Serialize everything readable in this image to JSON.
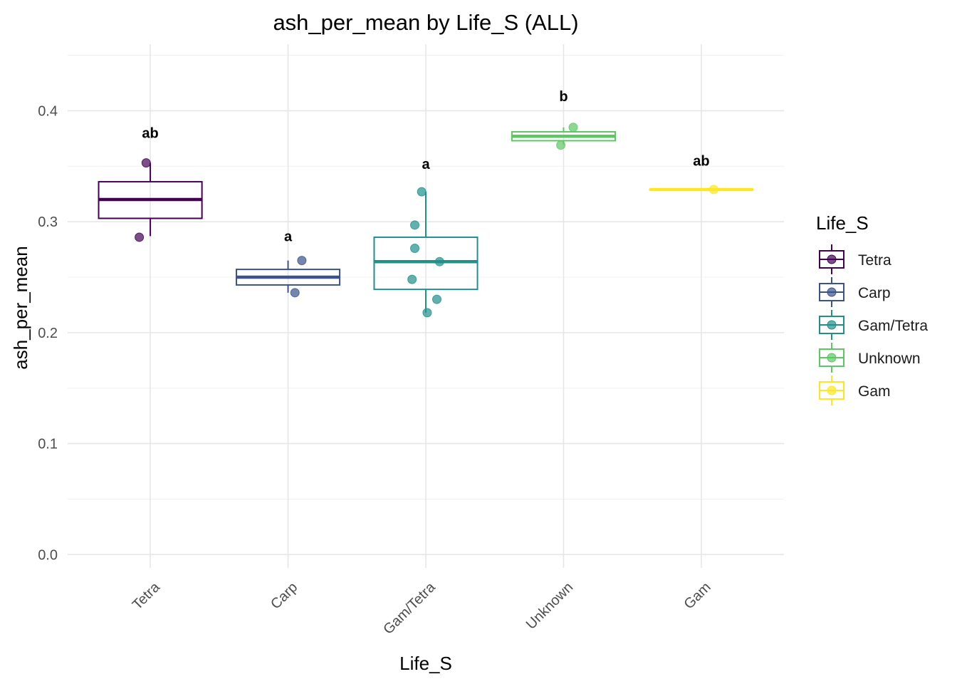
{
  "chart_data": {
    "type": "box",
    "title": "ash_per_mean by Life_S (ALL)",
    "xlabel": "Life_S",
    "ylabel": "ash_per_mean",
    "categories": [
      "Tetra",
      "Carp",
      "Gam/Tetra",
      "Unknown",
      "Gam"
    ],
    "ylim": [
      -0.012,
      0.46
    ],
    "yticks": [
      0.0,
      0.1,
      0.2,
      0.3,
      0.4
    ],
    "ytick_labels": [
      "0.0",
      "0.1",
      "0.2",
      "0.3",
      "0.4"
    ],
    "grid": true,
    "legend": {
      "title": "Life_S",
      "position": "right",
      "entries": [
        "Tetra",
        "Carp",
        "Gam/Tetra",
        "Unknown",
        "Gam"
      ]
    },
    "colors": {
      "Tetra": "#440154",
      "Carp": "#3b528b",
      "Gam/Tetra": "#21908c",
      "Unknown": "#5dc863",
      "Gam": "#fde725"
    },
    "boxes": [
      {
        "category": "Tetra",
        "whisker_low": 0.287,
        "q1": 0.303,
        "median": 0.32,
        "q3": 0.336,
        "whisker_high": 0.353,
        "points": [
          0.353,
          0.286
        ],
        "jitter": [
          -0.03,
          -0.08
        ],
        "letter": "ab",
        "letter_y": 0.38
      },
      {
        "category": "Carp",
        "whisker_low": 0.236,
        "q1": 0.243,
        "median": 0.25,
        "q3": 0.257,
        "whisker_high": 0.265,
        "points": [
          0.265,
          0.236
        ],
        "jitter": [
          0.1,
          0.05
        ],
        "letter": "a",
        "letter_y": 0.287
      },
      {
        "category": "Gam/Tetra",
        "whisker_low": 0.218,
        "q1": 0.239,
        "median": 0.264,
        "q3": 0.286,
        "whisker_high": 0.327,
        "points": [
          0.327,
          0.297,
          0.276,
          0.264,
          0.248,
          0.23,
          0.218
        ],
        "jitter": [
          -0.03,
          -0.08,
          -0.08,
          0.1,
          -0.1,
          0.08,
          0.01
        ],
        "letter": "a",
        "letter_y": 0.352
      },
      {
        "category": "Unknown",
        "whisker_low": 0.37,
        "q1": 0.373,
        "median": 0.377,
        "q3": 0.381,
        "whisker_high": 0.385,
        "points": [
          0.385,
          0.369
        ],
        "jitter": [
          0.07,
          -0.02
        ],
        "letter": "b",
        "letter_y": 0.413
      },
      {
        "category": "Gam",
        "whisker_low": 0.329,
        "q1": 0.329,
        "median": 0.329,
        "q3": 0.329,
        "whisker_high": 0.329,
        "points": [
          0.329
        ],
        "jitter": [
          0.09
        ],
        "letter": "ab",
        "letter_y": 0.355
      }
    ]
  }
}
